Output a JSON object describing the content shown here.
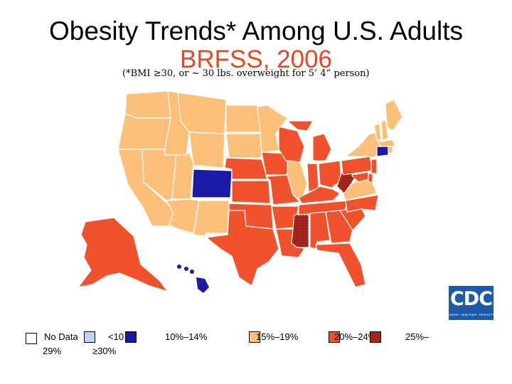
{
  "title": "Obesity Trends* Among U.S. Adults",
  "subtitle": "BRFSS, 2006",
  "note": "(*BMI ≥30, or ~ 30 lbs. overweight for 5’ 4” person)",
  "colors": {
    "no_data": "#ffffff",
    "lt10": "#b9d3f0",
    "r10_14": "#1a1aa6",
    "r15_19": "#fdc07a",
    "r20_24": "#f0522d",
    "r25_29": "#a8251c",
    "ge30": "#5d0f0a"
  },
  "legend": {
    "no_data": "No Data",
    "lt10": "<10",
    "r10_14": "10%–14%",
    "r15_19": "15%–19%",
    "r20_24": "20%–24%",
    "r25_29_a": "25%–",
    "r25_29_b": "29%",
    "ge30": "≥30%"
  },
  "logo": {
    "text": "CDC",
    "tagline": "SAFER · HEALTHIER · PEOPLE™"
  },
  "states": [
    {
      "name": "Washington",
      "category": "r15_19"
    },
    {
      "name": "Oregon",
      "category": "r15_19"
    },
    {
      "name": "California",
      "category": "r15_19"
    },
    {
      "name": "Idaho",
      "category": "r15_19"
    },
    {
      "name": "Nevada",
      "category": "r15_19"
    },
    {
      "name": "Utah",
      "category": "r15_19"
    },
    {
      "name": "Arizona",
      "category": "r15_19"
    },
    {
      "name": "Montana",
      "category": "r15_19"
    },
    {
      "name": "Wyoming",
      "category": "r15_19"
    },
    {
      "name": "Colorado",
      "category": "r10_14"
    },
    {
      "name": "New Mexico",
      "category": "r15_19"
    },
    {
      "name": "North Dakota",
      "category": "r15_19"
    },
    {
      "name": "South Dakota",
      "category": "r15_19"
    },
    {
      "name": "Nebraska",
      "category": "r20_24"
    },
    {
      "name": "Kansas",
      "category": "r20_24"
    },
    {
      "name": "Oklahoma",
      "category": "r20_24"
    },
    {
      "name": "Texas",
      "category": "r20_24"
    },
    {
      "name": "Minnesota",
      "category": "r15_19"
    },
    {
      "name": "Iowa",
      "category": "r20_24"
    },
    {
      "name": "Missouri",
      "category": "r20_24"
    },
    {
      "name": "Arkansas",
      "category": "r20_24"
    },
    {
      "name": "Louisiana",
      "category": "r20_24"
    },
    {
      "name": "Wisconsin",
      "category": "r20_24"
    },
    {
      "name": "Illinois",
      "category": "r15_19"
    },
    {
      "name": "Michigan",
      "category": "r20_24"
    },
    {
      "name": "Indiana",
      "category": "r20_24"
    },
    {
      "name": "Ohio",
      "category": "r20_24"
    },
    {
      "name": "Kentucky",
      "category": "r20_24"
    },
    {
      "name": "Tennessee",
      "category": "r20_24"
    },
    {
      "name": "Mississippi",
      "category": "r25_29"
    },
    {
      "name": "Alabama",
      "category": "r20_24"
    },
    {
      "name": "Georgia",
      "category": "r20_24"
    },
    {
      "name": "Florida",
      "category": "r20_24"
    },
    {
      "name": "South Carolina",
      "category": "r20_24"
    },
    {
      "name": "North Carolina",
      "category": "r20_24"
    },
    {
      "name": "Virginia",
      "category": "r15_19"
    },
    {
      "name": "West Virginia",
      "category": "r25_29"
    },
    {
      "name": "Pennsylvania",
      "category": "r20_24"
    },
    {
      "name": "New York",
      "category": "r15_19"
    },
    {
      "name": "Vermont",
      "category": "r15_19"
    },
    {
      "name": "New Hampshire",
      "category": "r15_19"
    },
    {
      "name": "Maine",
      "category": "r15_19"
    },
    {
      "name": "Massachusetts",
      "category": "r15_19"
    },
    {
      "name": "Connecticut",
      "category": "r10_14"
    },
    {
      "name": "Rhode Island",
      "category": "r15_19"
    },
    {
      "name": "New Jersey",
      "category": "r20_24"
    },
    {
      "name": "Delaware",
      "category": "r20_24"
    },
    {
      "name": "Maryland",
      "category": "r20_24"
    },
    {
      "name": "Alaska",
      "category": "r20_24"
    },
    {
      "name": "Hawaii",
      "category": "r10_14"
    }
  ]
}
